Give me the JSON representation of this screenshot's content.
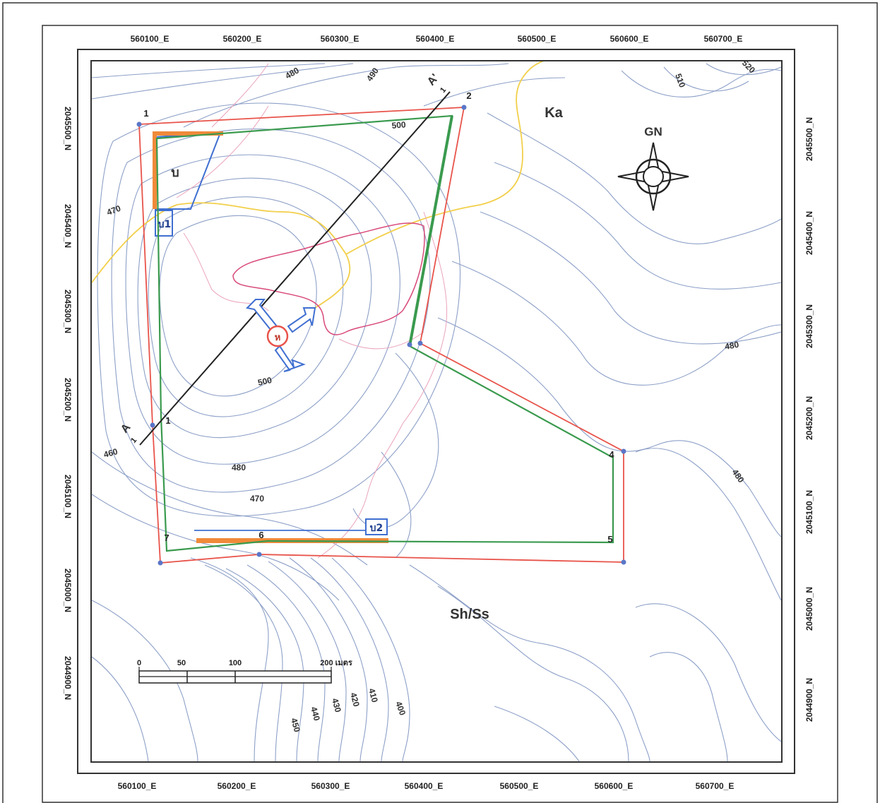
{
  "grid": {
    "easting_top": [
      "560100_E",
      "560200_E",
      "560300_E",
      "560400_E",
      "560500_E",
      "560600_E",
      "560700_E"
    ],
    "easting_bottom": [
      "560100_E",
      "560200_E",
      "560300_E",
      "560400_E",
      "560500_E",
      "560600_E",
      "560700_E"
    ],
    "northing_left": [
      "2045500_N",
      "2045400_N",
      "2045300_N",
      "2045200_N",
      "2045100_N",
      "2045000_N",
      "2044900_N"
    ],
    "northing_right": [
      "2045500_N",
      "2045400_N",
      "2045300_N",
      "2045200_N",
      "2045100_N",
      "2045000_N",
      "2044900_N"
    ]
  },
  "zones": {
    "upper": "Ka",
    "lower": "Sh/Ss"
  },
  "north_arrow": {
    "label": "GN",
    "icon": "compass-rose-icon"
  },
  "section_line": {
    "start_label": "A",
    "start_index": "1",
    "end_label": "A'",
    "end_index": "1"
  },
  "vertices": {
    "v1": "1",
    "v2": "2",
    "v4": "4",
    "v5": "5",
    "v6": "6",
    "v7": "7",
    "v1b": "1"
  },
  "features": {
    "pond_upper": "บ",
    "pond_upper_small": "บ1",
    "pond_lower": "บ2",
    "well_marker": "ห"
  },
  "contour_labels": {
    "c1": "480",
    "c2": "490",
    "c3": "500",
    "c4": "510",
    "c5": "520",
    "c6": "470",
    "c7": "500",
    "c8": "460",
    "c9": "480",
    "c10": "470",
    "c11": "480",
    "c12": "480",
    "c13": "450",
    "c14": "440",
    "c15": "430",
    "c16": "420",
    "c17": "410",
    "c18": "400"
  },
  "scale_bar": {
    "ticks": [
      "0",
      "50",
      "100",
      "200 เมตร"
    ]
  },
  "colors": {
    "boundary_red": "#e8534a",
    "boundary_green": "#3a9a4e",
    "contour_blue": "#8da0c8",
    "stream_yellow": "#f2cf4a",
    "stream_pink": "#e27a9a",
    "pond_blue": "#3f6fd1",
    "orange_bar": "#f08a3a",
    "section_black": "#222222"
  }
}
